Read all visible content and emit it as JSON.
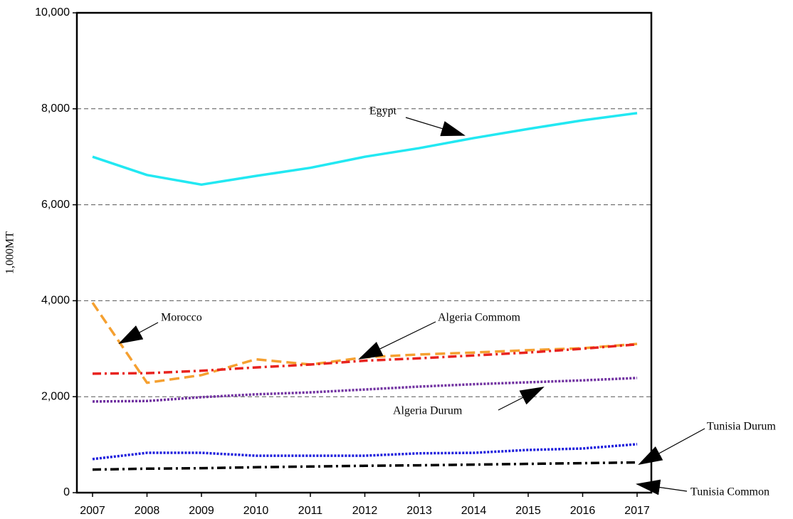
{
  "chart_data": {
    "type": "line",
    "y_label": "1,000MT",
    "categories": [
      "2007",
      "2008",
      "2009",
      "2010",
      "2011",
      "2012",
      "2013",
      "2014",
      "2015",
      "2016",
      "2017"
    ],
    "ylim": [
      0,
      10000
    ],
    "yticks": [
      0,
      {
        "value": 2000,
        "label": "2,000"
      },
      {
        "value": 4000,
        "label": "4,000"
      },
      {
        "value": 6000,
        "label": "6,000"
      },
      {
        "value": 8000,
        "label": "8,000"
      },
      {
        "value": 10000,
        "label": "10,000"
      }
    ],
    "grid": true,
    "series": [
      {
        "name": "Egypt",
        "color": "#22e8f2",
        "line_style": "solid",
        "values": [
          7000,
          6620,
          6420,
          6600,
          6770,
          7000,
          7180,
          7390,
          7580,
          7760,
          7910
        ]
      },
      {
        "name": "Morocco",
        "color": "#f5a030",
        "line_style": "dashed",
        "values": [
          3960,
          2290,
          2450,
          2780,
          2670,
          2820,
          2880,
          2920,
          2970,
          3010,
          3100
        ]
      },
      {
        "name": "Algeria Commom",
        "color": "#e8231f",
        "line_style": "dashdot",
        "values": [
          2480,
          2490,
          2540,
          2610,
          2670,
          2750,
          2800,
          2860,
          2920,
          3000,
          3090
        ]
      },
      {
        "name": "Algeria Durum",
        "color": "#7030a0",
        "line_style": "dotted",
        "values": [
          1900,
          1910,
          1990,
          2050,
          2090,
          2150,
          2210,
          2260,
          2300,
          2340,
          2390
        ]
      },
      {
        "name": "Tunisia Durum",
        "color": "#1c1cdc",
        "line_style": "dotted",
        "values": [
          700,
          830,
          830,
          770,
          770,
          770,
          820,
          830,
          890,
          920,
          1010
        ]
      },
      {
        "name": "Tunisia Common",
        "color": "#000000",
        "line_style": "dashdot",
        "values": [
          480,
          500,
          510,
          530,
          545,
          560,
          570,
          585,
          600,
          615,
          630
        ]
      }
    ]
  }
}
